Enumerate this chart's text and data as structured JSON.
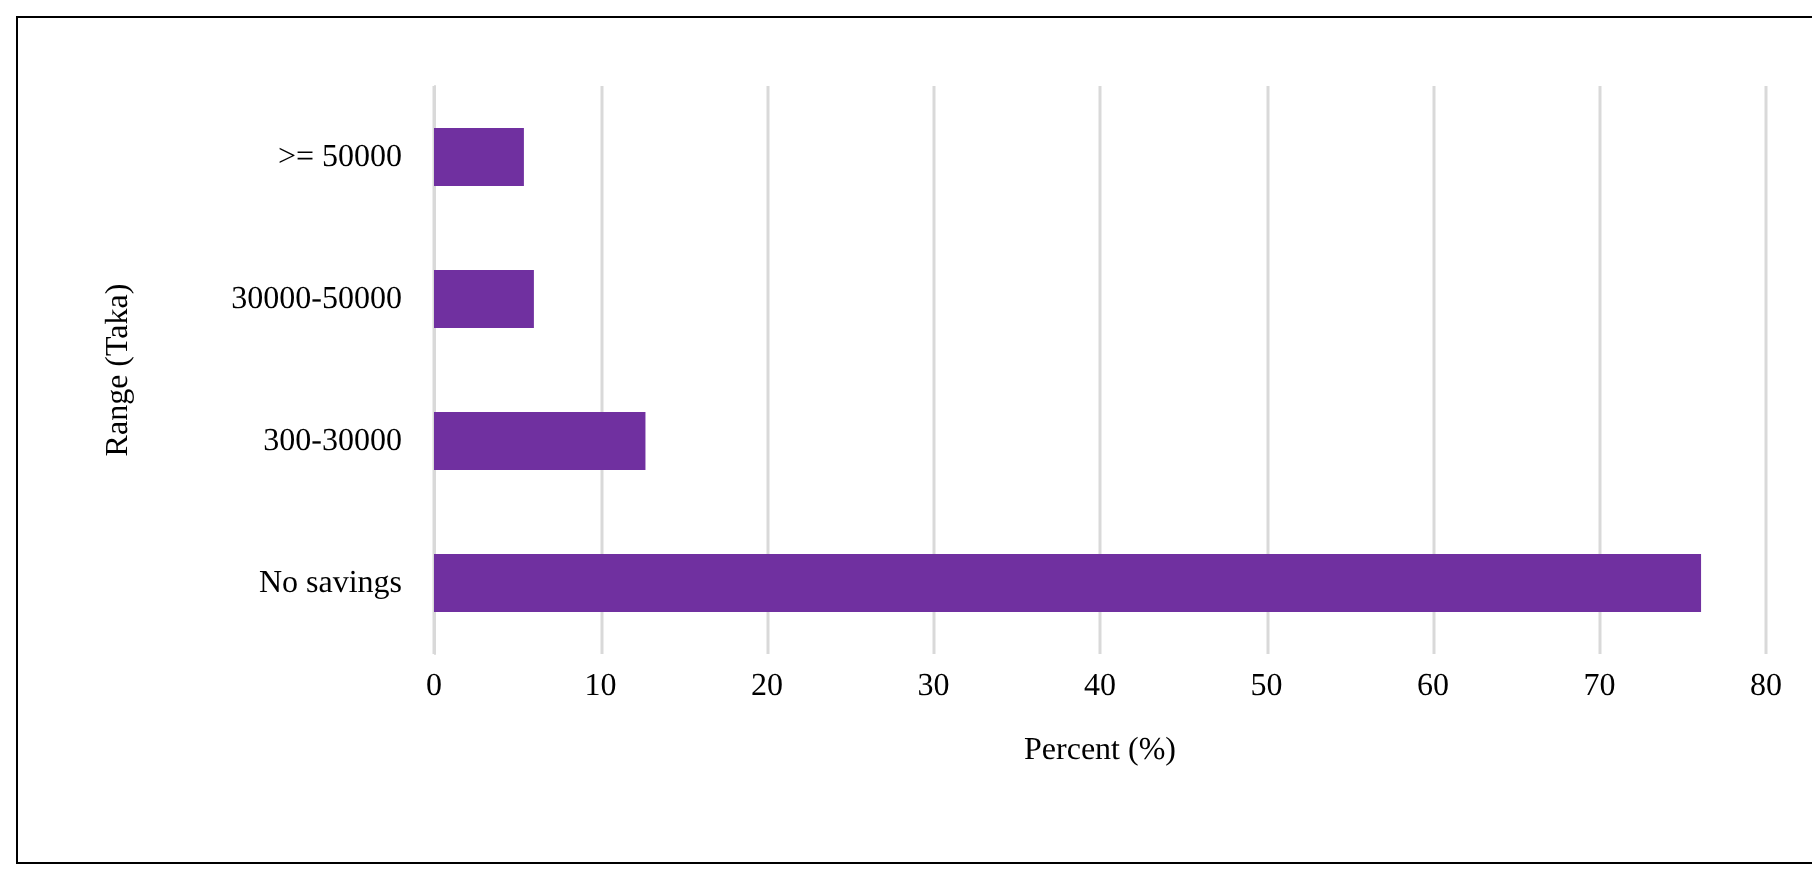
{
  "chart_data": {
    "type": "bar",
    "orientation": "horizontal",
    "xlabel": "Percent (%)",
    "ylabel": "Range (Taka)",
    "categories": [
      ">= 50000",
      "30000-50000",
      "300-30000",
      "No savings"
    ],
    "values": [
      5.4,
      6.0,
      12.7,
      76.1
    ],
    "color": "#7030a0",
    "xlim": [
      0,
      80
    ],
    "xticks": [
      0,
      10,
      20,
      30,
      40,
      50,
      60,
      70,
      80
    ],
    "grid": "x"
  }
}
